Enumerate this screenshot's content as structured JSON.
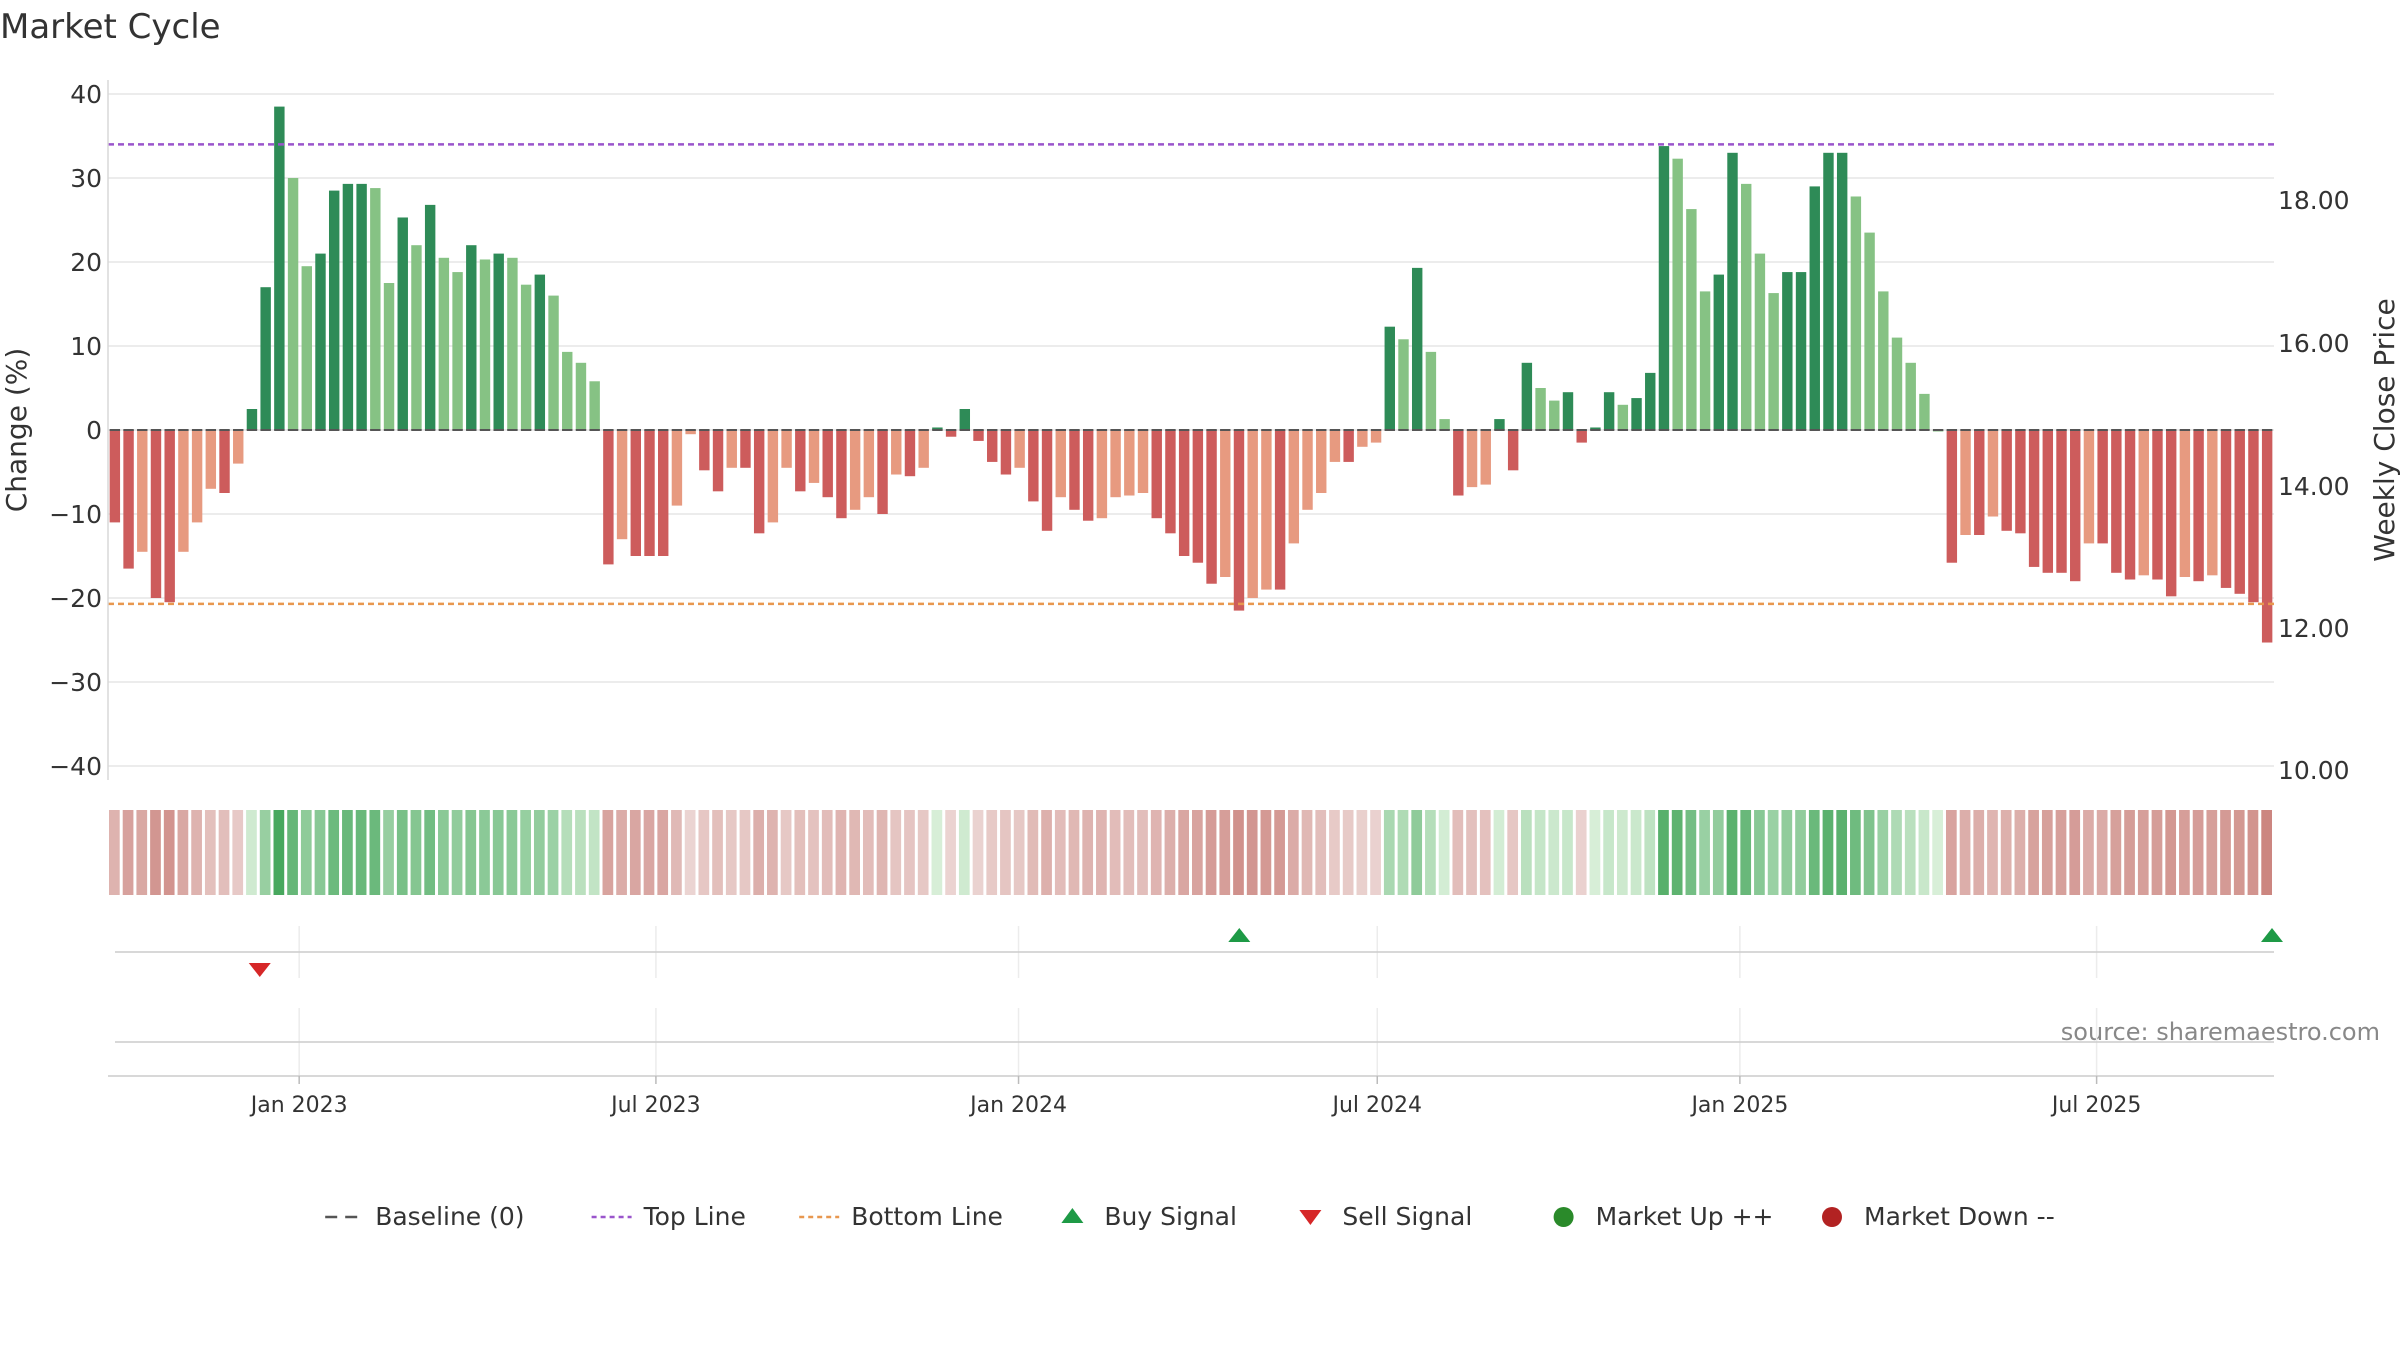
{
  "chart_data": {
    "type": "bar",
    "title": "Market Cycle",
    "ylabel": "Change (%)",
    "ylabel_right": "Weekly Close Price",
    "ylim": [
      -41,
      41
    ],
    "yticks": [
      "40",
      "30",
      "20",
      "10",
      "0",
      "−10",
      "−20",
      "−30",
      "−40"
    ],
    "right_yticks": [
      "18.00",
      "16.00",
      "14.00",
      "12.00",
      "10.00"
    ],
    "x_ticks": [
      "Jan 2023",
      "Jul 2023",
      "Jan 2024",
      "Jul 2024",
      "Jan 2025",
      "Jul 2025"
    ],
    "date_range": [
      "2022-09-26",
      "2025-09-29"
    ],
    "top_line": 34.0,
    "bottom_line": -20.7,
    "grid": true,
    "legend_position": "bottom-center",
    "source_note": "source: sharemaestro.com",
    "colors": {
      "market_up_strong": "#2e8b57",
      "market_up": "#86c284",
      "market_down_strong": "#cd5c5c",
      "market_down": "#e79a80",
      "top_line": "#9a55cc",
      "bottom_line": "#e8974f",
      "buy": "#1e9a46",
      "sell": "#d62728",
      "market_up_dot": "#2a8a2a",
      "market_down_dot": "#b22222",
      "baseline": "#555555"
    },
    "values": [
      -11,
      -16.5,
      -14.5,
      -20,
      -20.5,
      -14.5,
      -11,
      -7,
      -7.5,
      -4,
      2.5,
      17,
      38.5,
      30,
      19.5,
      21,
      28.5,
      29.3,
      29.3,
      28.8,
      17.5,
      25.3,
      22,
      26.8,
      20.5,
      18.8,
      22,
      20.3,
      21,
      20.5,
      17.3,
      18.5,
      16,
      9.3,
      8,
      5.8,
      -16,
      -13,
      -15,
      -15,
      -15,
      -9,
      -0.5,
      -4.8,
      -7.3,
      -4.5,
      -4.5,
      -12.3,
      -11,
      -4.5,
      -7.3,
      -6.3,
      -8,
      -10.5,
      -9.5,
      -8,
      -10,
      -5.3,
      -5.5,
      -4.5,
      0.3,
      -0.8,
      2.5,
      -1.3,
      -3.8,
      -5.3,
      -4.5,
      -8.5,
      -12,
      -8,
      -9.5,
      -10.8,
      -10.5,
      -8,
      -7.8,
      -7.5,
      -10.5,
      -12.3,
      -15,
      -15.8,
      -18.3,
      -17.5,
      -21.5,
      -20,
      -19,
      -19,
      -13.5,
      -9.5,
      -7.5,
      -3.8,
      -3.8,
      -2,
      -1.5,
      12.3,
      10.8,
      19.3,
      9.3,
      1.3,
      -7.8,
      -6.8,
      -6.5,
      1.3,
      -4.8,
      8,
      5,
      3.5,
      4.5,
      -1.5,
      0.3,
      4.5,
      3,
      3.8,
      6.8,
      33.8,
      32.3,
      26.3,
      16.5,
      18.5,
      33,
      29.3,
      21,
      16.3,
      18.8,
      18.8,
      29,
      33,
      33,
      27.8,
      23.5,
      16.5,
      11,
      8,
      4.3,
      0,
      -15.8,
      -12.5,
      -12.5,
      -10.3,
      -12,
      -12.3,
      -16.3,
      -17,
      -17,
      -18,
      -13.5,
      -13.5,
      -17,
      -17.8,
      -17.3,
      -17.8,
      -19.8,
      -17.5,
      -18,
      -17.3,
      -18.8,
      -19.5,
      -20.5,
      -25.3
    ],
    "signals": [
      {
        "type": "sell",
        "date": "2022-12-12"
      },
      {
        "type": "buy",
        "date": "2024-04-22"
      },
      {
        "type": "buy",
        "date": "2025-09-29"
      }
    ],
    "legend": [
      {
        "key": "baseline",
        "label": "Baseline (0)"
      },
      {
        "key": "top_line",
        "label": "Top Line"
      },
      {
        "key": "bottom_line",
        "label": "Bottom Line"
      },
      {
        "key": "buy",
        "label": "Buy Signal"
      },
      {
        "key": "sell",
        "label": "Sell Signal"
      },
      {
        "key": "market_up_dot",
        "label": "Market Up ++"
      },
      {
        "key": "market_down_dot",
        "label": "Market Down --"
      }
    ]
  }
}
